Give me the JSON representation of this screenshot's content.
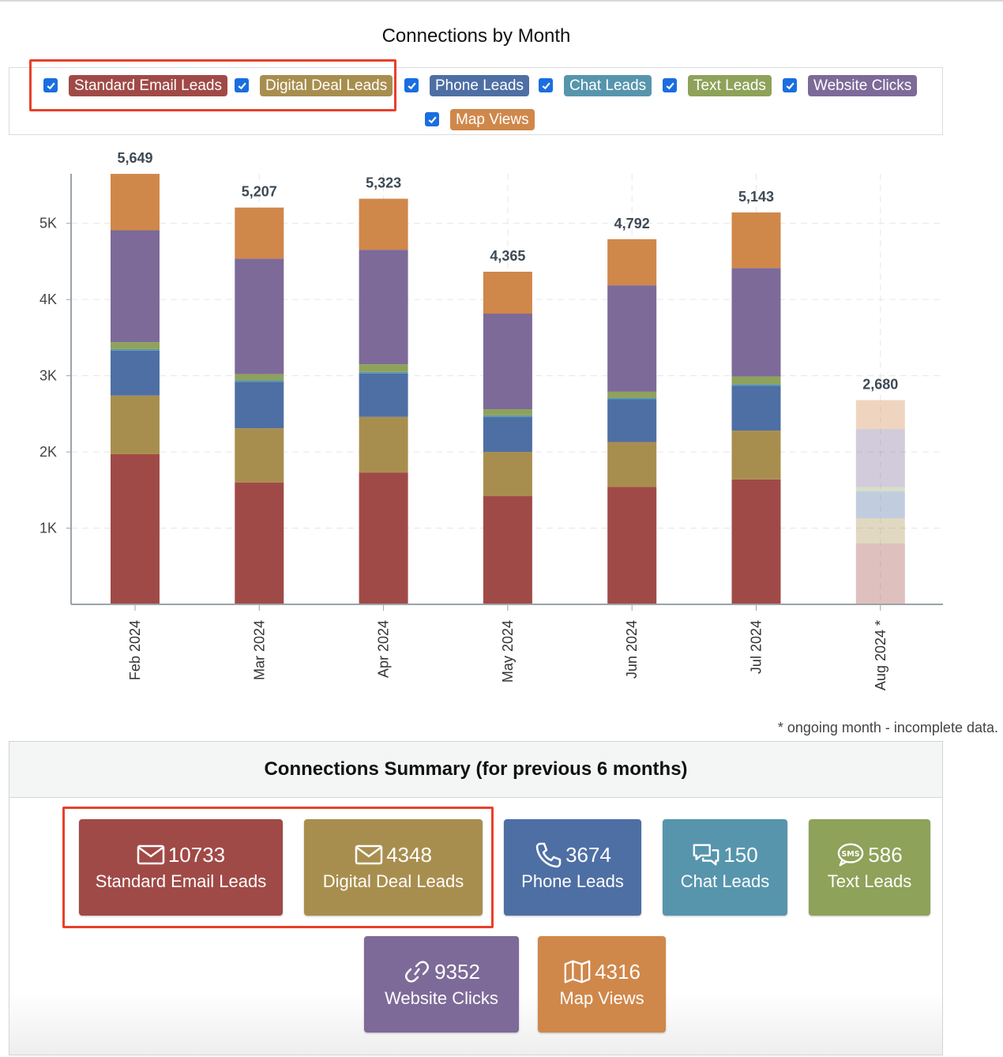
{
  "chart_data": {
    "type": "bar",
    "stacked": true,
    "title": "Connections by Month",
    "categories": [
      "Feb 2024",
      "Mar 2024",
      "Apr 2024",
      "May 2024",
      "Jun 2024",
      "Jul 2024",
      "Aug 2024 *"
    ],
    "totals": [
      "5,649",
      "5,207",
      "5,323",
      "4,365",
      "4,792",
      "5,143",
      "2,680"
    ],
    "incomplete_category_index": 6,
    "ylim": [
      0,
      5650
    ],
    "yticks": [
      1000,
      2000,
      3000,
      4000,
      5000
    ],
    "ytick_labels": [
      "1K",
      "2K",
      "3K",
      "4K",
      "5K"
    ],
    "series": [
      {
        "name": "Standard Email Leads",
        "color": "#a04a47",
        "values": [
          1970,
          1600,
          1730,
          1420,
          1540,
          1640,
          800
        ]
      },
      {
        "name": "Digital Deal Leads",
        "color": "#a88e4e",
        "values": [
          770,
          710,
          730,
          580,
          590,
          640,
          330
        ]
      },
      {
        "name": "Phone Leads",
        "color": "#4e6fa4",
        "values": [
          590,
          610,
          570,
          460,
          560,
          590,
          350
        ]
      },
      {
        "name": "Chat Leads",
        "color": "#5795ad",
        "values": [
          20,
          20,
          20,
          20,
          20,
          20,
          10
        ]
      },
      {
        "name": "Text Leads",
        "color": "#8ea25a",
        "values": [
          90,
          80,
          100,
          80,
          80,
          100,
          50
        ]
      },
      {
        "name": "Website Clicks",
        "color": "#7d6a98",
        "values": [
          1469,
          1517,
          1503,
          1255,
          1397,
          1423,
          760
        ]
      },
      {
        "name": "Map Views",
        "color": "#d0874a",
        "values": [
          740,
          670,
          670,
          550,
          605,
          730,
          380
        ]
      }
    ]
  },
  "legend": [
    {
      "label": "Standard Email Leads",
      "color": "#a04a47",
      "checked": true
    },
    {
      "label": "Digital Deal Leads",
      "color": "#a88e4e",
      "checked": true
    },
    {
      "label": "Phone Leads",
      "color": "#4e6fa4",
      "checked": true
    },
    {
      "label": "Chat Leads",
      "color": "#5795ad",
      "checked": true
    },
    {
      "label": "Text Leads",
      "color": "#8ea25a",
      "checked": true
    },
    {
      "label": "Website Clicks",
      "color": "#7d6a98",
      "checked": true
    },
    {
      "label": "Map Views",
      "color": "#d0874a",
      "checked": true
    }
  ],
  "footnote": "* ongoing month - incomplete data.",
  "summary": {
    "title": "Connections Summary (for previous 6 months)",
    "tiles": [
      {
        "label": "Standard Email Leads",
        "value": "10733",
        "icon": "envelope-icon",
        "color": "#a04a47"
      },
      {
        "label": "Digital Deal Leads",
        "value": "4348",
        "icon": "envelope-icon",
        "color": "#a88e4e"
      },
      {
        "label": "Phone Leads",
        "value": "3674",
        "icon": "phone-icon",
        "color": "#4e6fa4"
      },
      {
        "label": "Chat Leads",
        "value": "150",
        "icon": "chat-bubbles-icon",
        "color": "#5795ad"
      },
      {
        "label": "Text Leads",
        "value": "586",
        "icon": "sms-icon",
        "color": "#8ea25a"
      },
      {
        "label": "Website Clicks",
        "value": "9352",
        "icon": "link-icon",
        "color": "#7d6a98"
      },
      {
        "label": "Map Views",
        "value": "4316",
        "icon": "map-icon",
        "color": "#d0874a"
      }
    ]
  }
}
